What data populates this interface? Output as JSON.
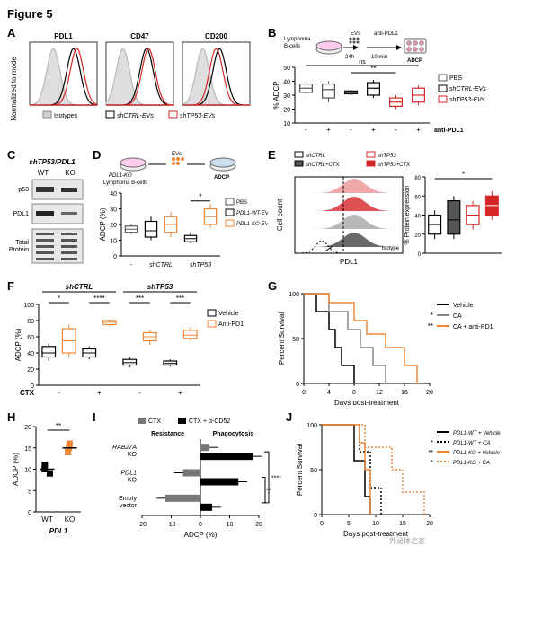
{
  "figure_title": "Figure 5",
  "colors": {
    "black": "#000000",
    "gray_fill": "#b8b8b8",
    "gray_dark": "#555555",
    "red": "#d62728",
    "orange": "#ef8636",
    "white": "#ffffff"
  },
  "panelA": {
    "label": "A",
    "y_label": "Normalized to mode",
    "plots": [
      {
        "title": "PDL1",
        "curves": [
          {
            "color": "#b8b8b8",
            "fill": "#d0d0d0",
            "peak_x": 0.35
          },
          {
            "color": "#000000",
            "fill": "none",
            "peak_x": 0.65
          },
          {
            "color": "#d62728",
            "fill": "none",
            "peak_x": 0.7
          }
        ]
      },
      {
        "title": "CD47",
        "curves": [
          {
            "color": "#b8b8b8",
            "fill": "#d0d0d0",
            "peak_x": 0.25
          },
          {
            "color": "#000000",
            "fill": "none",
            "peak_x": 0.6
          },
          {
            "color": "#d62728",
            "fill": "none",
            "peak_x": 0.63
          }
        ]
      },
      {
        "title": "CD200",
        "curves": [
          {
            "color": "#b8b8b8",
            "fill": "#d0d0d0",
            "peak_x": 0.3
          },
          {
            "color": "#000000",
            "fill": "none",
            "peak_x": 0.55
          },
          {
            "color": "#d62728",
            "fill": "none",
            "peak_x": 0.5
          }
        ]
      }
    ],
    "legend": [
      "Isotypes",
      "shCTRL-EVs",
      "shTP53-EVs"
    ]
  },
  "panelB": {
    "label": "B",
    "schematic": {
      "lymphoma": "Lymphoma\nB-cells",
      "evs": "EVs",
      "time1": "24h",
      "anti": "anti-PDL1",
      "time2": "10 min",
      "adcp": "ADCP"
    },
    "y_label": "% ADCP",
    "y_lim": [
      10,
      50
    ],
    "groups": [
      "PBS",
      "shCTRL-EVs",
      "shTP53-EVs"
    ],
    "x_levels": [
      "-",
      "+",
      "-",
      "+",
      "-",
      "+"
    ],
    "x_label": "anti-PDL1",
    "annotations": [
      "ns",
      "**"
    ],
    "boxes": [
      {
        "group": 0,
        "x": 0,
        "median": 35,
        "q1": 32,
        "q3": 38,
        "min": 30,
        "max": 40,
        "color": "#ffffff",
        "border": "#555555"
      },
      {
        "group": 0,
        "x": 1,
        "median": 34,
        "q1": 28,
        "q3": 38,
        "min": 25,
        "max": 40,
        "color": "#ffffff",
        "border": "#555555"
      },
      {
        "group": 1,
        "x": 2,
        "median": 32,
        "q1": 31,
        "q3": 33,
        "min": 30,
        "max": 34,
        "color": "#ffffff",
        "border": "#000000"
      },
      {
        "group": 1,
        "x": 3,
        "median": 35,
        "q1": 30,
        "q3": 39,
        "min": 28,
        "max": 41,
        "color": "#ffffff",
        "border": "#000000"
      },
      {
        "group": 2,
        "x": 4,
        "median": 25,
        "q1": 22,
        "q3": 28,
        "min": 20,
        "max": 30,
        "color": "#ffffff",
        "border": "#d62728"
      },
      {
        "group": 2,
        "x": 5,
        "median": 30,
        "q1": 25,
        "q3": 35,
        "min": 23,
        "max": 37,
        "color": "#ffffff",
        "border": "#d62728"
      }
    ]
  },
  "panelC": {
    "label": "C",
    "title": "shTP53/PDL1",
    "cols": [
      "WT",
      "KO"
    ],
    "rows": [
      "p53",
      "PDL1",
      "Total\nProtein"
    ]
  },
  "panelD": {
    "label": "D",
    "schematic": {
      "left": "PDL1-KO\nLymphoma B-cells",
      "evs": "EVs",
      "adcp": "ADCP"
    },
    "y_label": "ADCP (%)",
    "y_lim": [
      0,
      40
    ],
    "legend": [
      "PBS",
      "PDL1-WT-EVs",
      "PDL1-KO-EVs"
    ],
    "x_groups": [
      "-",
      "shCTRL",
      "shTP53"
    ],
    "annotation": "*",
    "boxes": [
      {
        "x": 0,
        "median": 17,
        "q1": 15,
        "q3": 19,
        "min": 14,
        "max": 20,
        "border": "#555555"
      },
      {
        "x": 1,
        "median": 16,
        "q1": 12,
        "q3": 22,
        "min": 10,
        "max": 25,
        "border": "#000000"
      },
      {
        "x": 2,
        "median": 20,
        "q1": 15,
        "q3": 25,
        "min": 12,
        "max": 28,
        "border": "#ef8636"
      },
      {
        "x": 3,
        "median": 11,
        "q1": 9,
        "q3": 13,
        "min": 8,
        "max": 15,
        "border": "#000000"
      },
      {
        "x": 4,
        "median": 25,
        "q1": 20,
        "q3": 30,
        "min": 18,
        "max": 33,
        "border": "#ef8636"
      }
    ]
  },
  "panelE": {
    "label": "E",
    "legend": [
      "shCTRL",
      "shTP53",
      "shCTRL+CTX",
      "shTP53+CTX"
    ],
    "hist_y_label": "Cell count",
    "hist_x_label": "PDL1",
    "isotype_label": "Isotype",
    "box_y_label": "% Protein expression",
    "box_y_lim": [
      0,
      80
    ],
    "annotation": "*",
    "boxes": [
      {
        "median": 30,
        "q1": 20,
        "q3": 40,
        "min": 15,
        "max": 45,
        "fill": "#ffffff",
        "border": "#000000"
      },
      {
        "median": 35,
        "q1": 20,
        "q3": 55,
        "min": 15,
        "max": 60,
        "fill": "#555555",
        "border": "#000000"
      },
      {
        "median": 40,
        "q1": 30,
        "q3": 50,
        "min": 25,
        "max": 55,
        "fill": "#ffffff",
        "border": "#d62728"
      },
      {
        "median": 50,
        "q1": 40,
        "q3": 60,
        "min": 35,
        "max": 65,
        "fill": "#d62728",
        "border": "#d62728"
      }
    ]
  },
  "panelF": {
    "label": "F",
    "y_label": "ADCP (%)",
    "y_lim": [
      0,
      100
    ],
    "top_groups": [
      "shCTRL",
      "shTP53"
    ],
    "legend": [
      "Vehicle",
      "Anti-PD1"
    ],
    "x_label": "CTX",
    "x_levels": [
      "-",
      "+",
      "-",
      "+"
    ],
    "annotations": [
      "*",
      "****",
      "***",
      "***"
    ],
    "boxes": [
      {
        "x": 0,
        "median": 40,
        "q1": 35,
        "q3": 48,
        "min": 30,
        "max": 52,
        "border": "#000000"
      },
      {
        "x": 1,
        "median": 55,
        "q1": 40,
        "q3": 70,
        "min": 35,
        "max": 75,
        "border": "#ef8636"
      },
      {
        "x": 2,
        "median": 40,
        "q1": 35,
        "q3": 45,
        "min": 32,
        "max": 48,
        "border": "#000000"
      },
      {
        "x": 3,
        "median": 78,
        "q1": 75,
        "q3": 80,
        "min": 73,
        "max": 82,
        "border": "#ef8636"
      },
      {
        "x": 4,
        "median": 28,
        "q1": 25,
        "q3": 32,
        "min": 22,
        "max": 35,
        "border": "#000000"
      },
      {
        "x": 5,
        "median": 60,
        "q1": 55,
        "q3": 65,
        "min": 50,
        "max": 68,
        "border": "#ef8636"
      },
      {
        "x": 6,
        "median": 27,
        "q1": 25,
        "q3": 30,
        "min": 23,
        "max": 32,
        "border": "#000000"
      },
      {
        "x": 7,
        "median": 62,
        "q1": 58,
        "q3": 68,
        "min": 55,
        "max": 72,
        "border": "#ef8636"
      }
    ]
  },
  "panelG": {
    "label": "G",
    "y_label": "Percent Survival",
    "x_label": "Days post-treatment",
    "y_lim": [
      0,
      100
    ],
    "x_lim": [
      0,
      20
    ],
    "legend": [
      {
        "name": "Vehicle",
        "color": "#000000",
        "sig": ""
      },
      {
        "name": "CA",
        "color": "#888888",
        "sig": "*"
      },
      {
        "name": "CA + anti-PD1",
        "color": "#ef8636",
        "sig": "**"
      }
    ],
    "curves": [
      {
        "color": "#000000",
        "points": [
          [
            0,
            100
          ],
          [
            2,
            100
          ],
          [
            2,
            80
          ],
          [
            4,
            80
          ],
          [
            4,
            60
          ],
          [
            5,
            60
          ],
          [
            5,
            40
          ],
          [
            6,
            40
          ],
          [
            6,
            20
          ],
          [
            8,
            20
          ],
          [
            8,
            0
          ]
        ]
      },
      {
        "color": "#888888",
        "points": [
          [
            0,
            100
          ],
          [
            4,
            100
          ],
          [
            4,
            80
          ],
          [
            7,
            80
          ],
          [
            7,
            60
          ],
          [
            9,
            60
          ],
          [
            9,
            40
          ],
          [
            11,
            40
          ],
          [
            11,
            20
          ],
          [
            13,
            20
          ],
          [
            13,
            0
          ]
        ]
      },
      {
        "color": "#ef8636",
        "points": [
          [
            0,
            100
          ],
          [
            4,
            100
          ],
          [
            4,
            90
          ],
          [
            8,
            90
          ],
          [
            8,
            70
          ],
          [
            10,
            70
          ],
          [
            10,
            55
          ],
          [
            13,
            55
          ],
          [
            13,
            40
          ],
          [
            16,
            40
          ],
          [
            16,
            20
          ],
          [
            18,
            20
          ],
          [
            18,
            0
          ]
        ]
      }
    ]
  },
  "panelH": {
    "label": "H",
    "y_label": "ADCP (%)",
    "y_lim": [
      0,
      20
    ],
    "x_label": "PDL1",
    "x_levels": [
      "WT",
      "KO"
    ],
    "annotation": "**",
    "points": [
      {
        "x": 0,
        "y": 9,
        "color": "#000000"
      },
      {
        "x": 0,
        "y": 10,
        "color": "#000000"
      },
      {
        "x": 0,
        "y": 11,
        "color": "#000000"
      },
      {
        "x": 1,
        "y": 14,
        "color": "#ef8636"
      },
      {
        "x": 1,
        "y": 15,
        "color": "#ef8636"
      },
      {
        "x": 1,
        "y": 16,
        "color": "#ef8636"
      }
    ]
  },
  "panelI": {
    "label": "I",
    "top_labels": [
      "Resistance",
      "Phagocytosis"
    ],
    "legend": [
      "CTX",
      "CTX + α-CD52"
    ],
    "x_label": "ADCP (%)",
    "x_lim": [
      -20,
      20
    ],
    "rows": [
      "RAB27A\nKO",
      "PDL1\nKO",
      "Empty\nvector"
    ],
    "annotations": [
      "**",
      "****",
      "****"
    ],
    "bars": [
      {
        "row": 0,
        "ctx": 3,
        "ctx52": 18
      },
      {
        "row": 1,
        "ctx": -6,
        "ctx52": 13
      },
      {
        "row": 2,
        "ctx": -12,
        "ctx52": 4
      }
    ]
  },
  "panelJ": {
    "label": "J",
    "y_label": "Percent Survival",
    "x_label": "Days post-treatment",
    "y_lim": [
      0,
      100
    ],
    "x_lim": [
      0,
      20
    ],
    "legend": [
      {
        "name": "PDL1-WT + Vehicle",
        "color": "#000000",
        "dash": "solid",
        "sig": ""
      },
      {
        "name": "PDL1-WT + CA",
        "color": "#000000",
        "dash": "dotted",
        "sig": "*"
      },
      {
        "name": "PDL1-KO + Vehicle",
        "color": "#ef8636",
        "dash": "solid",
        "sig": "**"
      },
      {
        "name": "PDL1-KO + CA",
        "color": "#ef8636",
        "dash": "dotted",
        "sig": "*"
      }
    ],
    "curves": [
      {
        "color": "#000000",
        "dash": "0",
        "points": [
          [
            0,
            100
          ],
          [
            6,
            100
          ],
          [
            6,
            60
          ],
          [
            8,
            60
          ],
          [
            8,
            20
          ],
          [
            9,
            20
          ],
          [
            9,
            0
          ]
        ]
      },
      {
        "color": "#000000",
        "dash": "2,2",
        "points": [
          [
            0,
            100
          ],
          [
            7,
            100
          ],
          [
            7,
            70
          ],
          [
            9,
            70
          ],
          [
            9,
            30
          ],
          [
            11,
            30
          ],
          [
            11,
            0
          ]
        ]
      },
      {
        "color": "#ef8636",
        "dash": "0",
        "points": [
          [
            0,
            100
          ],
          [
            7,
            100
          ],
          [
            7,
            80
          ],
          [
            8,
            80
          ],
          [
            8,
            50
          ],
          [
            9,
            50
          ],
          [
            9,
            0
          ]
        ]
      },
      {
        "color": "#ef8636",
        "dash": "2,2",
        "points": [
          [
            0,
            100
          ],
          [
            8,
            100
          ],
          [
            8,
            75
          ],
          [
            13,
            75
          ],
          [
            13,
            50
          ],
          [
            15,
            50
          ],
          [
            15,
            25
          ],
          [
            19,
            25
          ],
          [
            19,
            0
          ]
        ]
      }
    ]
  },
  "watermark": "外泌体之家"
}
